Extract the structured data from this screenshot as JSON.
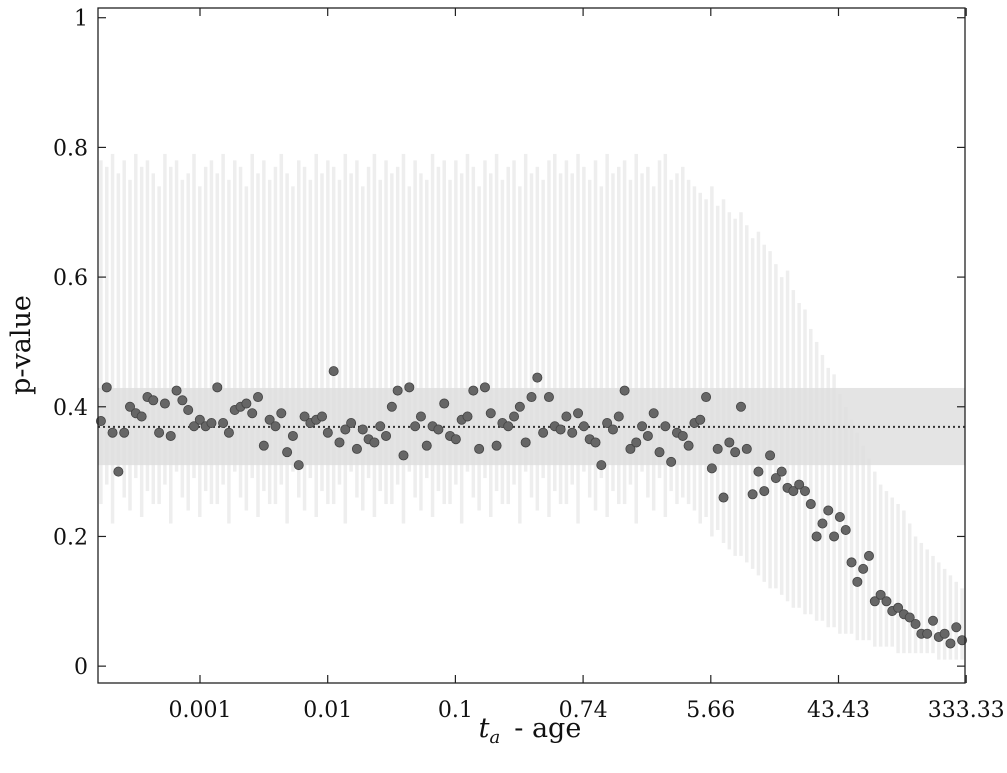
{
  "chart_data": {
    "type": "scatter",
    "y_label": "p-value",
    "x_label_symbol": "t",
    "x_label_subscript": "a",
    "x_label_text": "- age",
    "xticks": [
      "0.001",
      "0.01",
      "0.1",
      "0.74",
      "5.66",
      "43.43",
      "333.33"
    ],
    "ylim": [
      -0.026,
      1.015
    ],
    "yticks": [
      0,
      0.2,
      0.4,
      0.6,
      0.8,
      1
    ],
    "point_color": "#666666",
    "box_color": "#eeeeee",
    "band": [
      0.31,
      0.429
    ],
    "band_color": "#dddddd",
    "mean": 0.369,
    "values": [
      0.378,
      0.43,
      0.36,
      0.3,
      0.36,
      0.4,
      0.39,
      0.385,
      0.415,
      0.41,
      0.36,
      0.405,
      0.355,
      0.425,
      0.41,
      0.395,
      0.37,
      0.38,
      0.37,
      0.375,
      0.43,
      0.375,
      0.36,
      0.395,
      0.4,
      0.405,
      0.39,
      0.415,
      0.34,
      0.38,
      0.37,
      0.39,
      0.33,
      0.355,
      0.31,
      0.385,
      0.375,
      0.38,
      0.385,
      0.36,
      0.455,
      0.345,
      0.365,
      0.375,
      0.335,
      0.365,
      0.35,
      0.345,
      0.37,
      0.355,
      0.4,
      0.425,
      0.325,
      0.43,
      0.37,
      0.385,
      0.34,
      0.37,
      0.365,
      0.405,
      0.355,
      0.35,
      0.38,
      0.385,
      0.425,
      0.335,
      0.43,
      0.39,
      0.34,
      0.375,
      0.37,
      0.385,
      0.4,
      0.345,
      0.415,
      0.445,
      0.36,
      0.415,
      0.37,
      0.365,
      0.385,
      0.36,
      0.39,
      0.37,
      0.35,
      0.345,
      0.31,
      0.375,
      0.365,
      0.385,
      0.425,
      0.335,
      0.345,
      0.37,
      0.355,
      0.39,
      0.33,
      0.37,
      0.315,
      0.36,
      0.355,
      0.34,
      0.375,
      0.38,
      0.415,
      0.305,
      0.335,
      0.26,
      0.345,
      0.33,
      0.4,
      0.335,
      0.265,
      0.3,
      0.27,
      0.325,
      0.29,
      0.3,
      0.275,
      0.27,
      0.28,
      0.27,
      0.25,
      0.2,
      0.22,
      0.24,
      0.2,
      0.23,
      0.21,
      0.16,
      0.13,
      0.15,
      0.17,
      0.1,
      0.11,
      0.1,
      0.085,
      0.09,
      0.08,
      0.075,
      0.065,
      0.05,
      0.05,
      0.07,
      0.045,
      0.05,
      0.035,
      0.06,
      0.04
    ],
    "box_low": [
      0.25,
      0.28,
      0.22,
      0.3,
      0.26,
      0.24,
      0.29,
      0.23,
      0.27,
      0.25,
      0.25,
      0.28,
      0.22,
      0.3,
      0.26,
      0.24,
      0.29,
      0.23,
      0.27,
      0.25,
      0.25,
      0.28,
      0.22,
      0.3,
      0.26,
      0.24,
      0.29,
      0.23,
      0.27,
      0.25,
      0.25,
      0.28,
      0.22,
      0.3,
      0.26,
      0.24,
      0.29,
      0.23,
      0.27,
      0.25,
      0.25,
      0.28,
      0.22,
      0.3,
      0.26,
      0.24,
      0.29,
      0.23,
      0.27,
      0.25,
      0.25,
      0.28,
      0.22,
      0.3,
      0.26,
      0.24,
      0.29,
      0.23,
      0.27,
      0.25,
      0.25,
      0.28,
      0.22,
      0.3,
      0.26,
      0.24,
      0.29,
      0.23,
      0.27,
      0.25,
      0.25,
      0.28,
      0.22,
      0.3,
      0.26,
      0.24,
      0.29,
      0.23,
      0.27,
      0.25,
      0.25,
      0.28,
      0.22,
      0.3,
      0.26,
      0.24,
      0.29,
      0.23,
      0.27,
      0.25,
      0.25,
      0.28,
      0.22,
      0.3,
      0.26,
      0.24,
      0.29,
      0.23,
      0.27,
      0.25,
      0.26,
      0.25,
      0.24,
      0.22,
      0.23,
      0.2,
      0.21,
      0.19,
      0.18,
      0.17,
      0.17,
      0.16,
      0.15,
      0.14,
      0.13,
      0.12,
      0.12,
      0.11,
      0.1,
      0.09,
      0.09,
      0.08,
      0.08,
      0.07,
      0.07,
      0.06,
      0.06,
      0.05,
      0.05,
      0.05,
      0.04,
      0.04,
      0.04,
      0.03,
      0.03,
      0.03,
      0.03,
      0.02,
      0.02,
      0.02,
      0.02,
      0.02,
      0.02,
      0.02,
      0.01,
      0.01,
      0.01,
      0.01,
      0.01
    ],
    "box_high": [
      0.78,
      0.77,
      0.79,
      0.76,
      0.78,
      0.75,
      0.79,
      0.77,
      0.78,
      0.76,
      0.74,
      0.79,
      0.77,
      0.78,
      0.75,
      0.76,
      0.79,
      0.74,
      0.77,
      0.78,
      0.76,
      0.79,
      0.75,
      0.78,
      0.77,
      0.74,
      0.79,
      0.76,
      0.78,
      0.75,
      0.77,
      0.79,
      0.76,
      0.74,
      0.78,
      0.77,
      0.75,
      0.79,
      0.76,
      0.78,
      0.77,
      0.75,
      0.79,
      0.76,
      0.78,
      0.74,
      0.77,
      0.79,
      0.75,
      0.78,
      0.76,
      0.77,
      0.79,
      0.74,
      0.78,
      0.76,
      0.75,
      0.79,
      0.77,
      0.78,
      0.75,
      0.78,
      0.76,
      0.79,
      0.77,
      0.74,
      0.78,
      0.76,
      0.79,
      0.75,
      0.77,
      0.78,
      0.74,
      0.79,
      0.76,
      0.77,
      0.75,
      0.78,
      0.79,
      0.76,
      0.78,
      0.76,
      0.79,
      0.77,
      0.75,
      0.78,
      0.74,
      0.79,
      0.76,
      0.77,
      0.78,
      0.75,
      0.79,
      0.76,
      0.77,
      0.74,
      0.78,
      0.79,
      0.75,
      0.76,
      0.77,
      0.75,
      0.74,
      0.73,
      0.72,
      0.74,
      0.71,
      0.72,
      0.7,
      0.69,
      0.7,
      0.68,
      0.66,
      0.67,
      0.65,
      0.64,
      0.62,
      0.6,
      0.61,
      0.58,
      0.56,
      0.55,
      0.52,
      0.5,
      0.48,
      0.46,
      0.45,
      0.42,
      0.4,
      0.38,
      0.36,
      0.34,
      0.32,
      0.3,
      0.28,
      0.27,
      0.26,
      0.25,
      0.24,
      0.22,
      0.2,
      0.19,
      0.18,
      0.17,
      0.16,
      0.15,
      0.14,
      0.13,
      0.12
    ]
  }
}
